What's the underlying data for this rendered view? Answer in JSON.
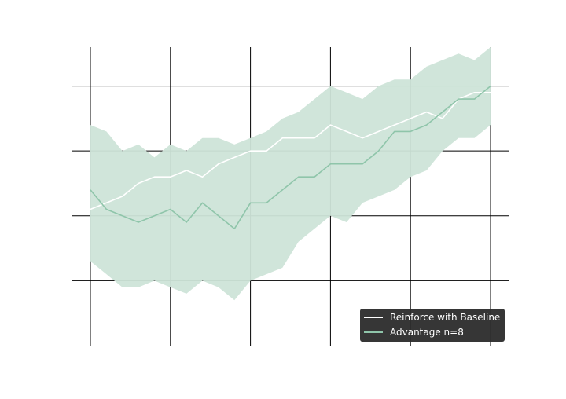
{
  "chart_data": {
    "type": "line",
    "title": "",
    "xlabel": "",
    "ylabel": "",
    "xlim": [
      0,
      250
    ],
    "ylim": [
      -1.0,
      3.6
    ],
    "xticks": [
      0,
      50,
      100,
      150,
      200,
      250
    ],
    "yticks": [
      0,
      1,
      2,
      3
    ],
    "grid": true,
    "legend_position": "lower-right",
    "series": [
      {
        "name": "Reinforce with Baseline",
        "color": "#ffffff",
        "x": [
          0,
          10,
          20,
          30,
          40,
          50,
          60,
          70,
          80,
          90,
          100,
          110,
          120,
          130,
          140,
          150,
          160,
          170,
          180,
          190,
          200,
          210,
          220,
          230,
          240,
          250
        ],
        "y": [
          1.1,
          1.2,
          1.3,
          1.5,
          1.6,
          1.6,
          1.7,
          1.6,
          1.8,
          1.9,
          2.0,
          2.0,
          2.2,
          2.2,
          2.2,
          2.4,
          2.3,
          2.2,
          2.3,
          2.4,
          2.5,
          2.6,
          2.5,
          2.8,
          2.9,
          2.9
        ],
        "band": false
      },
      {
        "name": "Advantage n=8",
        "color": "#8fc5aa",
        "x": [
          0,
          10,
          20,
          30,
          40,
          50,
          60,
          70,
          80,
          90,
          100,
          110,
          120,
          130,
          140,
          150,
          160,
          170,
          180,
          190,
          200,
          210,
          220,
          230,
          240,
          250
        ],
        "y": [
          1.4,
          1.1,
          1.0,
          0.9,
          1.0,
          1.1,
          0.9,
          1.2,
          1.0,
          0.8,
          1.2,
          1.2,
          1.4,
          1.6,
          1.6,
          1.8,
          1.8,
          1.8,
          2.0,
          2.3,
          2.3,
          2.4,
          2.6,
          2.8,
          2.8,
          3.0
        ],
        "lower": [
          0.3,
          0.1,
          -0.1,
          -0.1,
          0.0,
          -0.1,
          -0.2,
          0.0,
          -0.1,
          -0.3,
          0.0,
          0.1,
          0.2,
          0.6,
          0.8,
          1.0,
          0.9,
          1.2,
          1.3,
          1.4,
          1.6,
          1.7,
          2.0,
          2.2,
          2.2,
          2.4
        ],
        "upper": [
          2.4,
          2.3,
          2.0,
          2.1,
          1.9,
          2.1,
          2.0,
          2.2,
          2.2,
          2.1,
          2.2,
          2.3,
          2.5,
          2.6,
          2.8,
          3.0,
          2.9,
          2.8,
          3.0,
          3.1,
          3.1,
          3.3,
          3.4,
          3.5,
          3.4,
          3.6
        ],
        "band": true,
        "band_color": "#cde4d8"
      }
    ]
  }
}
